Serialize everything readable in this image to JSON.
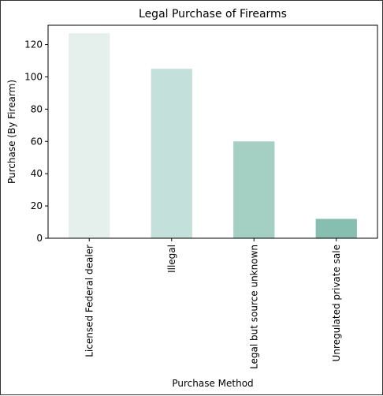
{
  "chart_data": {
    "type": "bar",
    "title": "Legal Purchase of Firearms",
    "xlabel": "Purchase Method",
    "ylabel": "Purchase (By Firearm)",
    "categories": [
      "Licensed Federal dealer",
      "Illegal",
      "Legal but source unknown",
      "Unregulated private sale"
    ],
    "values": [
      127,
      105,
      60,
      12
    ],
    "colors": [
      "#e5efec",
      "#c4e0da",
      "#a4d0c4",
      "#86beb0"
    ],
    "ylim": [
      0,
      132
    ],
    "yticks": [
      0,
      20,
      40,
      60,
      80,
      100,
      120
    ],
    "grid": false,
    "legend": "none"
  }
}
